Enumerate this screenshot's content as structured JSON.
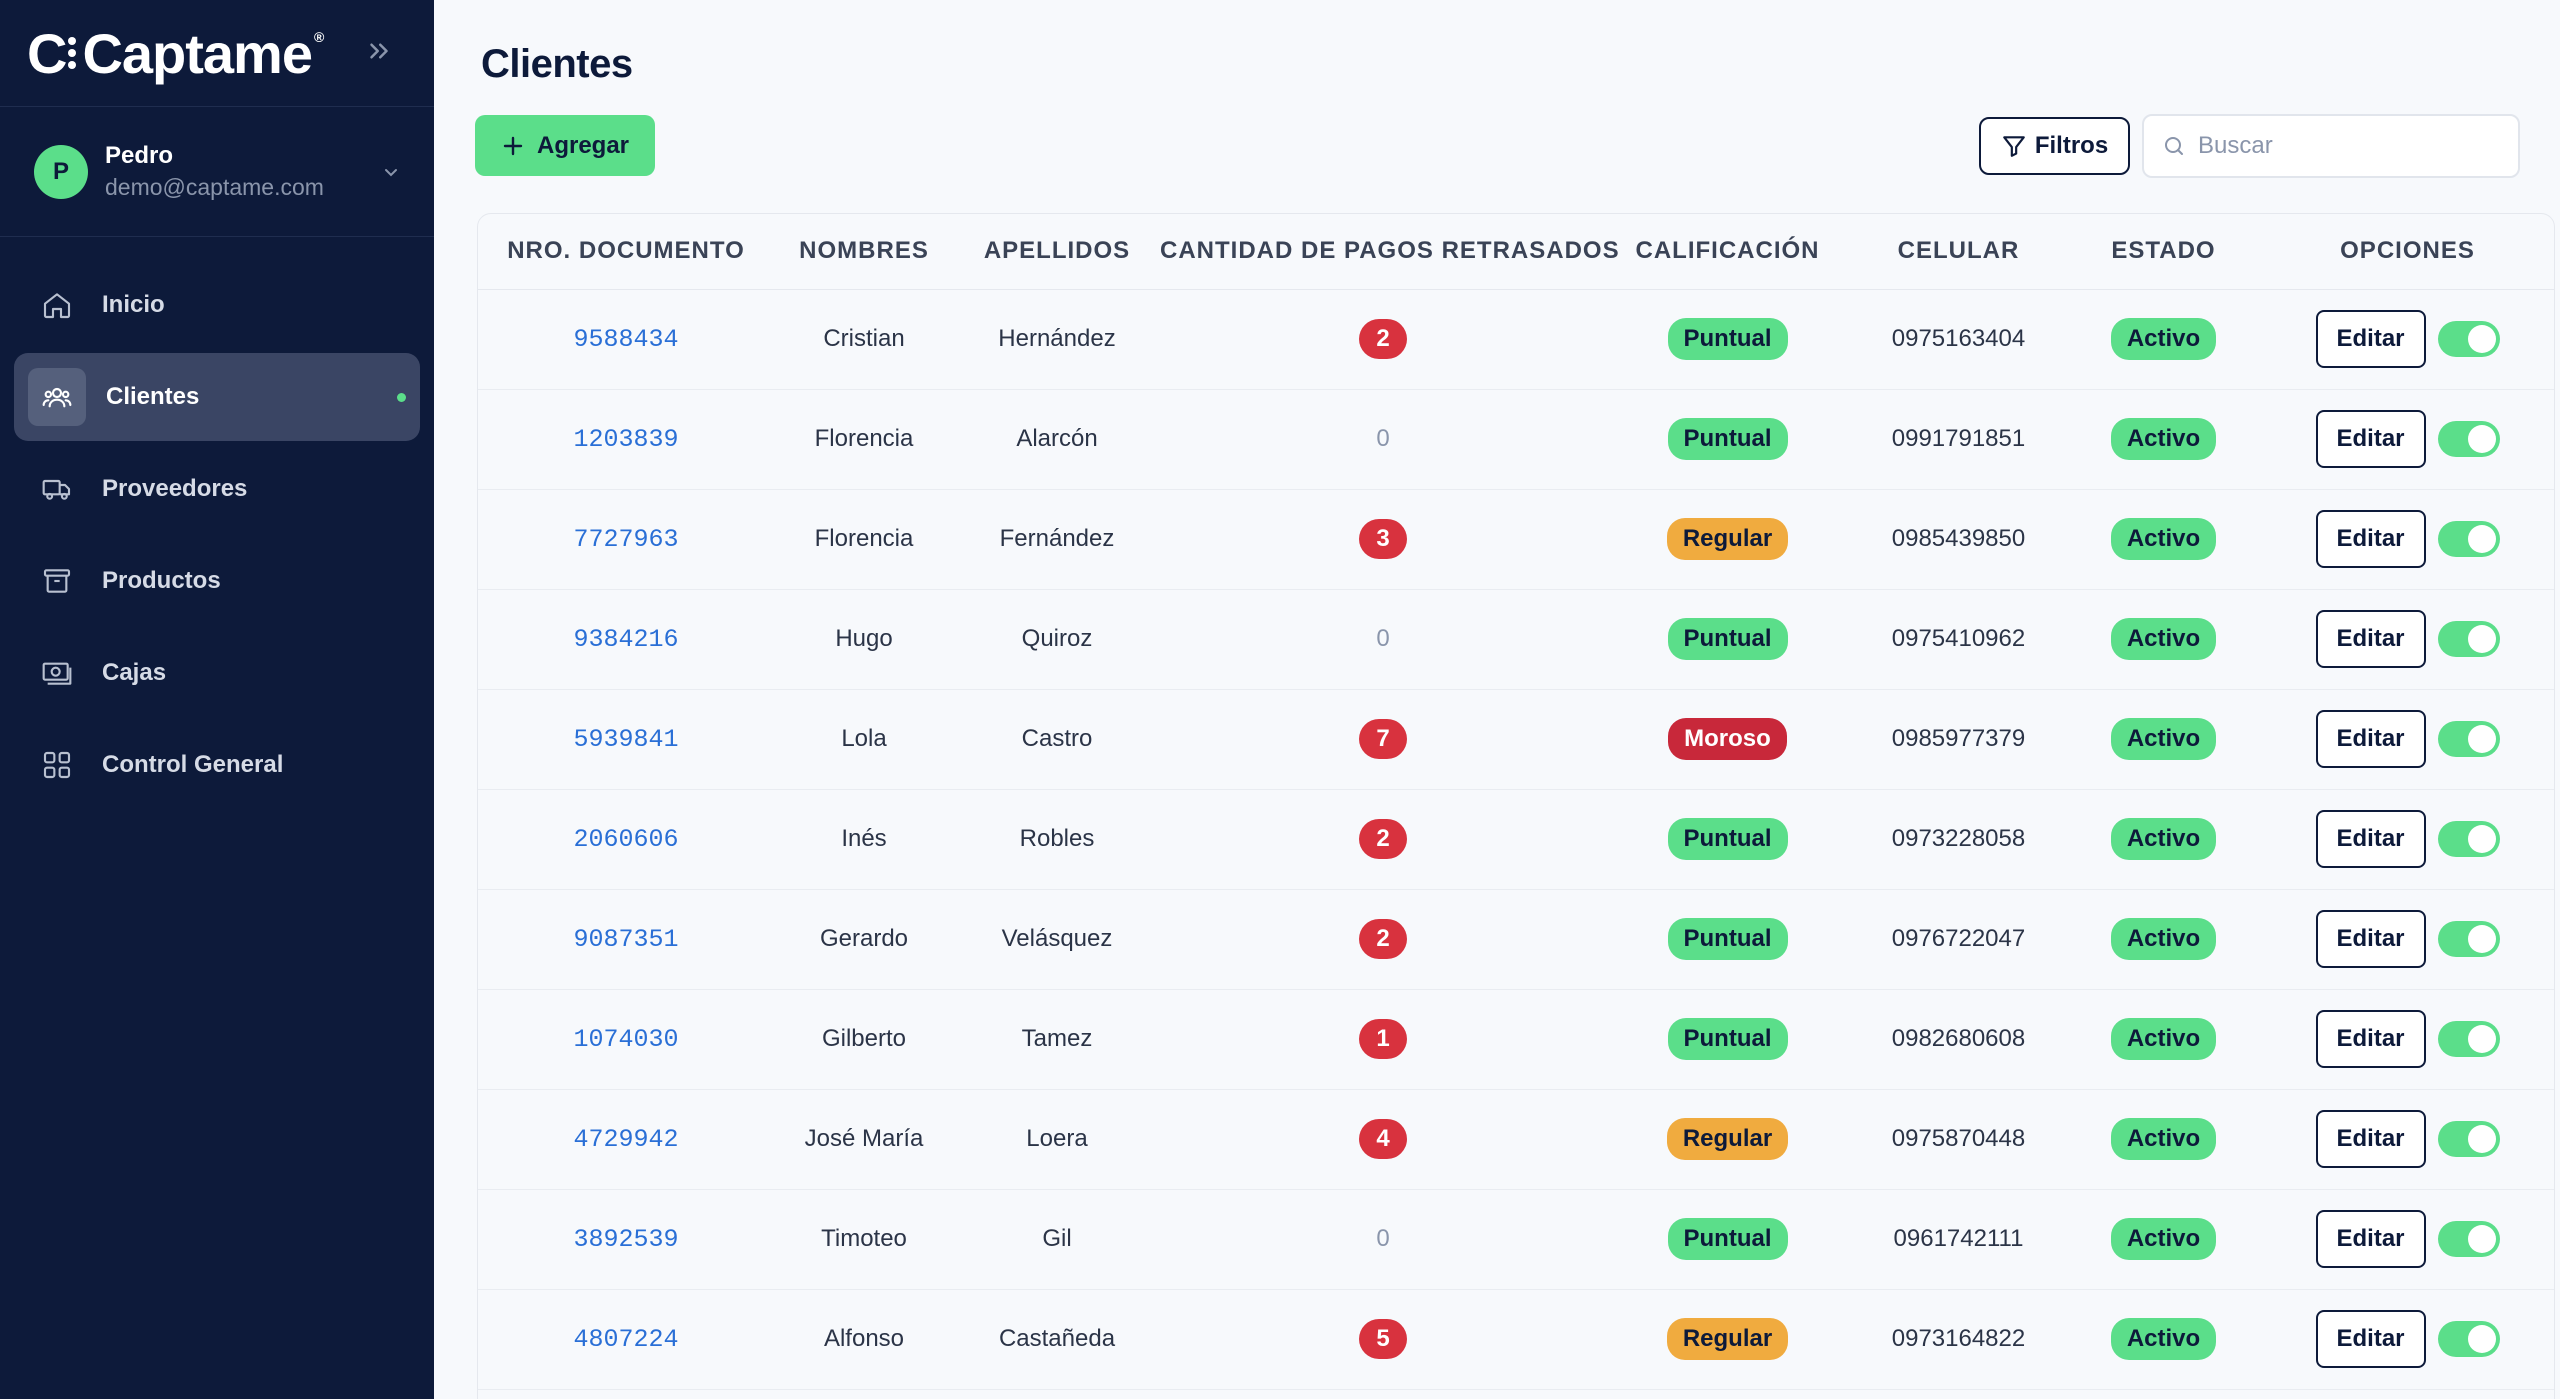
{
  "app": {
    "logo_text": "Captame",
    "logo_mark": "®"
  },
  "user": {
    "initial": "P",
    "name": "Pedro",
    "email": "demo@captame.com"
  },
  "sidebar": {
    "items": [
      {
        "label": "Inicio",
        "icon": "home-icon",
        "active": false
      },
      {
        "label": "Clientes",
        "icon": "users-icon",
        "active": true
      },
      {
        "label": "Proveedores",
        "icon": "truck-icon",
        "active": false
      },
      {
        "label": "Productos",
        "icon": "archive-icon",
        "active": false
      },
      {
        "label": "Cajas",
        "icon": "cash-icon",
        "active": false
      },
      {
        "label": "Control General",
        "icon": "grid-icon",
        "active": false
      }
    ]
  },
  "page": {
    "title": "Clientes"
  },
  "toolbar": {
    "add_label": "Agregar",
    "filter_label": "Filtros",
    "search_placeholder": "Buscar"
  },
  "table": {
    "headers": [
      "NRO. DOCUMENTO",
      "NOMBRES",
      "APELLIDOS",
      "CANTIDAD DE PAGOS RETRASADOS",
      "CALIFICACIÓN",
      "CELULAR",
      "ESTADO",
      "OPCIONES"
    ],
    "edit_label": "Editar",
    "rows": [
      {
        "doc": "9588434",
        "first": "Cristian",
        "last": "Hernández",
        "late": "2",
        "rating": "Puntual",
        "phone": "0975163404",
        "status": "Activo",
        "enabled": true
      },
      {
        "doc": "1203839",
        "first": "Florencia",
        "last": "Alarcón",
        "late": "0",
        "rating": "Puntual",
        "phone": "0991791851",
        "status": "Activo",
        "enabled": true
      },
      {
        "doc": "7727963",
        "first": "Florencia",
        "last": "Fernández",
        "late": "3",
        "rating": "Regular",
        "phone": "0985439850",
        "status": "Activo",
        "enabled": true
      },
      {
        "doc": "9384216",
        "first": "Hugo",
        "last": "Quiroz",
        "late": "0",
        "rating": "Puntual",
        "phone": "0975410962",
        "status": "Activo",
        "enabled": true
      },
      {
        "doc": "5939841",
        "first": "Lola",
        "last": "Castro",
        "late": "7",
        "rating": "Moroso",
        "phone": "0985977379",
        "status": "Activo",
        "enabled": true
      },
      {
        "doc": "2060606",
        "first": "Inés",
        "last": "Robles",
        "late": "2",
        "rating": "Puntual",
        "phone": "0973228058",
        "status": "Activo",
        "enabled": true
      },
      {
        "doc": "9087351",
        "first": "Gerardo",
        "last": "Velásquez",
        "late": "2",
        "rating": "Puntual",
        "phone": "0976722047",
        "status": "Activo",
        "enabled": true
      },
      {
        "doc": "1074030",
        "first": "Gilberto",
        "last": "Tamez",
        "late": "1",
        "rating": "Puntual",
        "phone": "0982680608",
        "status": "Activo",
        "enabled": true
      },
      {
        "doc": "4729942",
        "first": "José María",
        "last": "Loera",
        "late": "4",
        "rating": "Regular",
        "phone": "0975870448",
        "status": "Activo",
        "enabled": true
      },
      {
        "doc": "3892539",
        "first": "Timoteo",
        "last": "Gil",
        "late": "0",
        "rating": "Puntual",
        "phone": "0961742111",
        "status": "Activo",
        "enabled": true
      },
      {
        "doc": "4807224",
        "first": "Alfonso",
        "last": "Castañeda",
        "late": "5",
        "rating": "Regular",
        "phone": "0973164822",
        "status": "Activo",
        "enabled": true
      }
    ]
  },
  "colors": {
    "sidebar_bg": "#0d1a3a",
    "accent_green": "#5bde8a",
    "danger_red": "#d8323e",
    "warning_orange": "#f0ab3f"
  }
}
